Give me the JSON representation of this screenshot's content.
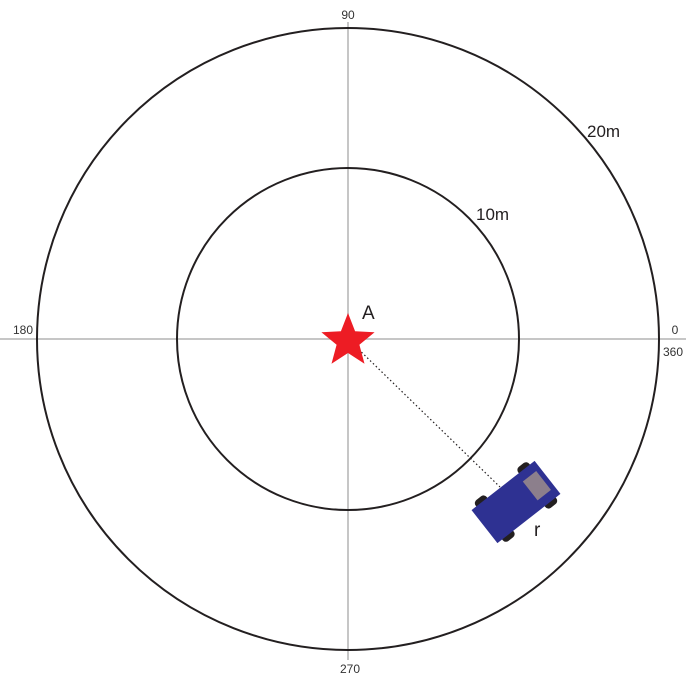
{
  "axes": {
    "angle_0": "0",
    "angle_90": "90",
    "angle_180": "180",
    "angle_270": "270",
    "angle_360": "360"
  },
  "rings": {
    "inner_label": "10m",
    "outer_label": "20m"
  },
  "points": {
    "center_label": "A",
    "vehicle_label": "r"
  },
  "colors": {
    "ring": "#231f20",
    "axis": "#b3b3b3",
    "star": "#ed1c24",
    "vehicle_body": "#2e3192",
    "vehicle_roof": "#8c7f8c",
    "wheel": "#231f20",
    "guide_line": "#231f20"
  },
  "icons": {
    "center_marker": "star-icon",
    "vehicle_marker": "car-icon"
  }
}
